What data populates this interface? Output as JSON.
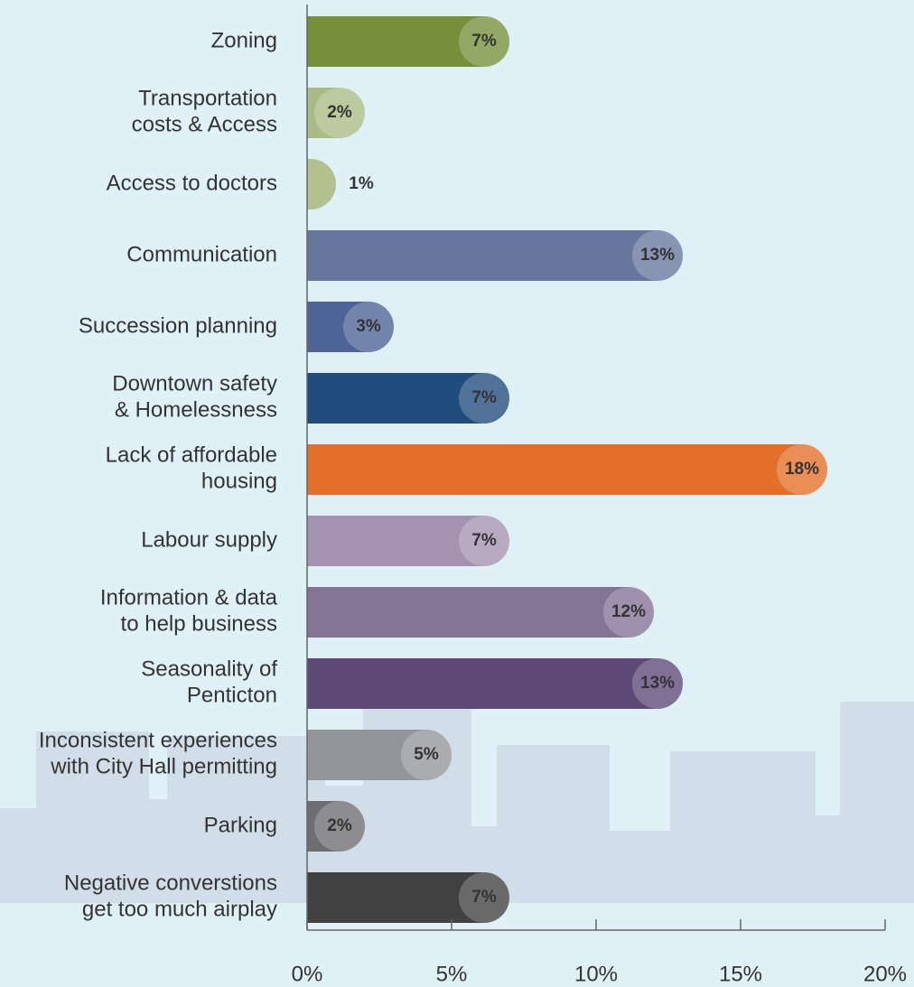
{
  "chart_data": {
    "type": "hbar",
    "categories": [
      "Zoning",
      "Transportation\ncosts & Access",
      "Access to doctors",
      "Communication",
      "Succession planning",
      "Downtown safety\n& Homelessness",
      "Lack of affordable\nhousing",
      "Labour supply",
      "Information & data\nto help business",
      "Seasonality of\nPenticton",
      "Inconsistent experiences\nwith City Hall permitting",
      "Parking",
      "Negative converstions\nget too much airplay"
    ],
    "values": [
      7,
      2,
      1,
      13,
      3,
      7,
      18,
      7,
      12,
      13,
      5,
      2,
      7
    ],
    "value_labels": [
      "7%",
      "2%",
      "1%",
      "13%",
      "3%",
      "7%",
      "18%",
      "7%",
      "12%",
      "13%",
      "5%",
      "2%",
      "7%"
    ],
    "colors": [
      "#76903a",
      "#a9bb85",
      "#b3c18f",
      "#68769e",
      "#4e6396",
      "#1f4b7d",
      "#e36f28",
      "#a492b0",
      "#857396",
      "#5e4878",
      "#939598",
      "#6d6e71",
      "#414141"
    ],
    "xlim": [
      0,
      20
    ],
    "xticks": [
      {
        "value": 0,
        "label": "0%"
      },
      {
        "value": 5,
        "label": "5%"
      },
      {
        "value": 10,
        "label": "10%"
      },
      {
        "value": 15,
        "label": "15%"
      },
      {
        "value": 20,
        "label": "20%"
      }
    ]
  }
}
